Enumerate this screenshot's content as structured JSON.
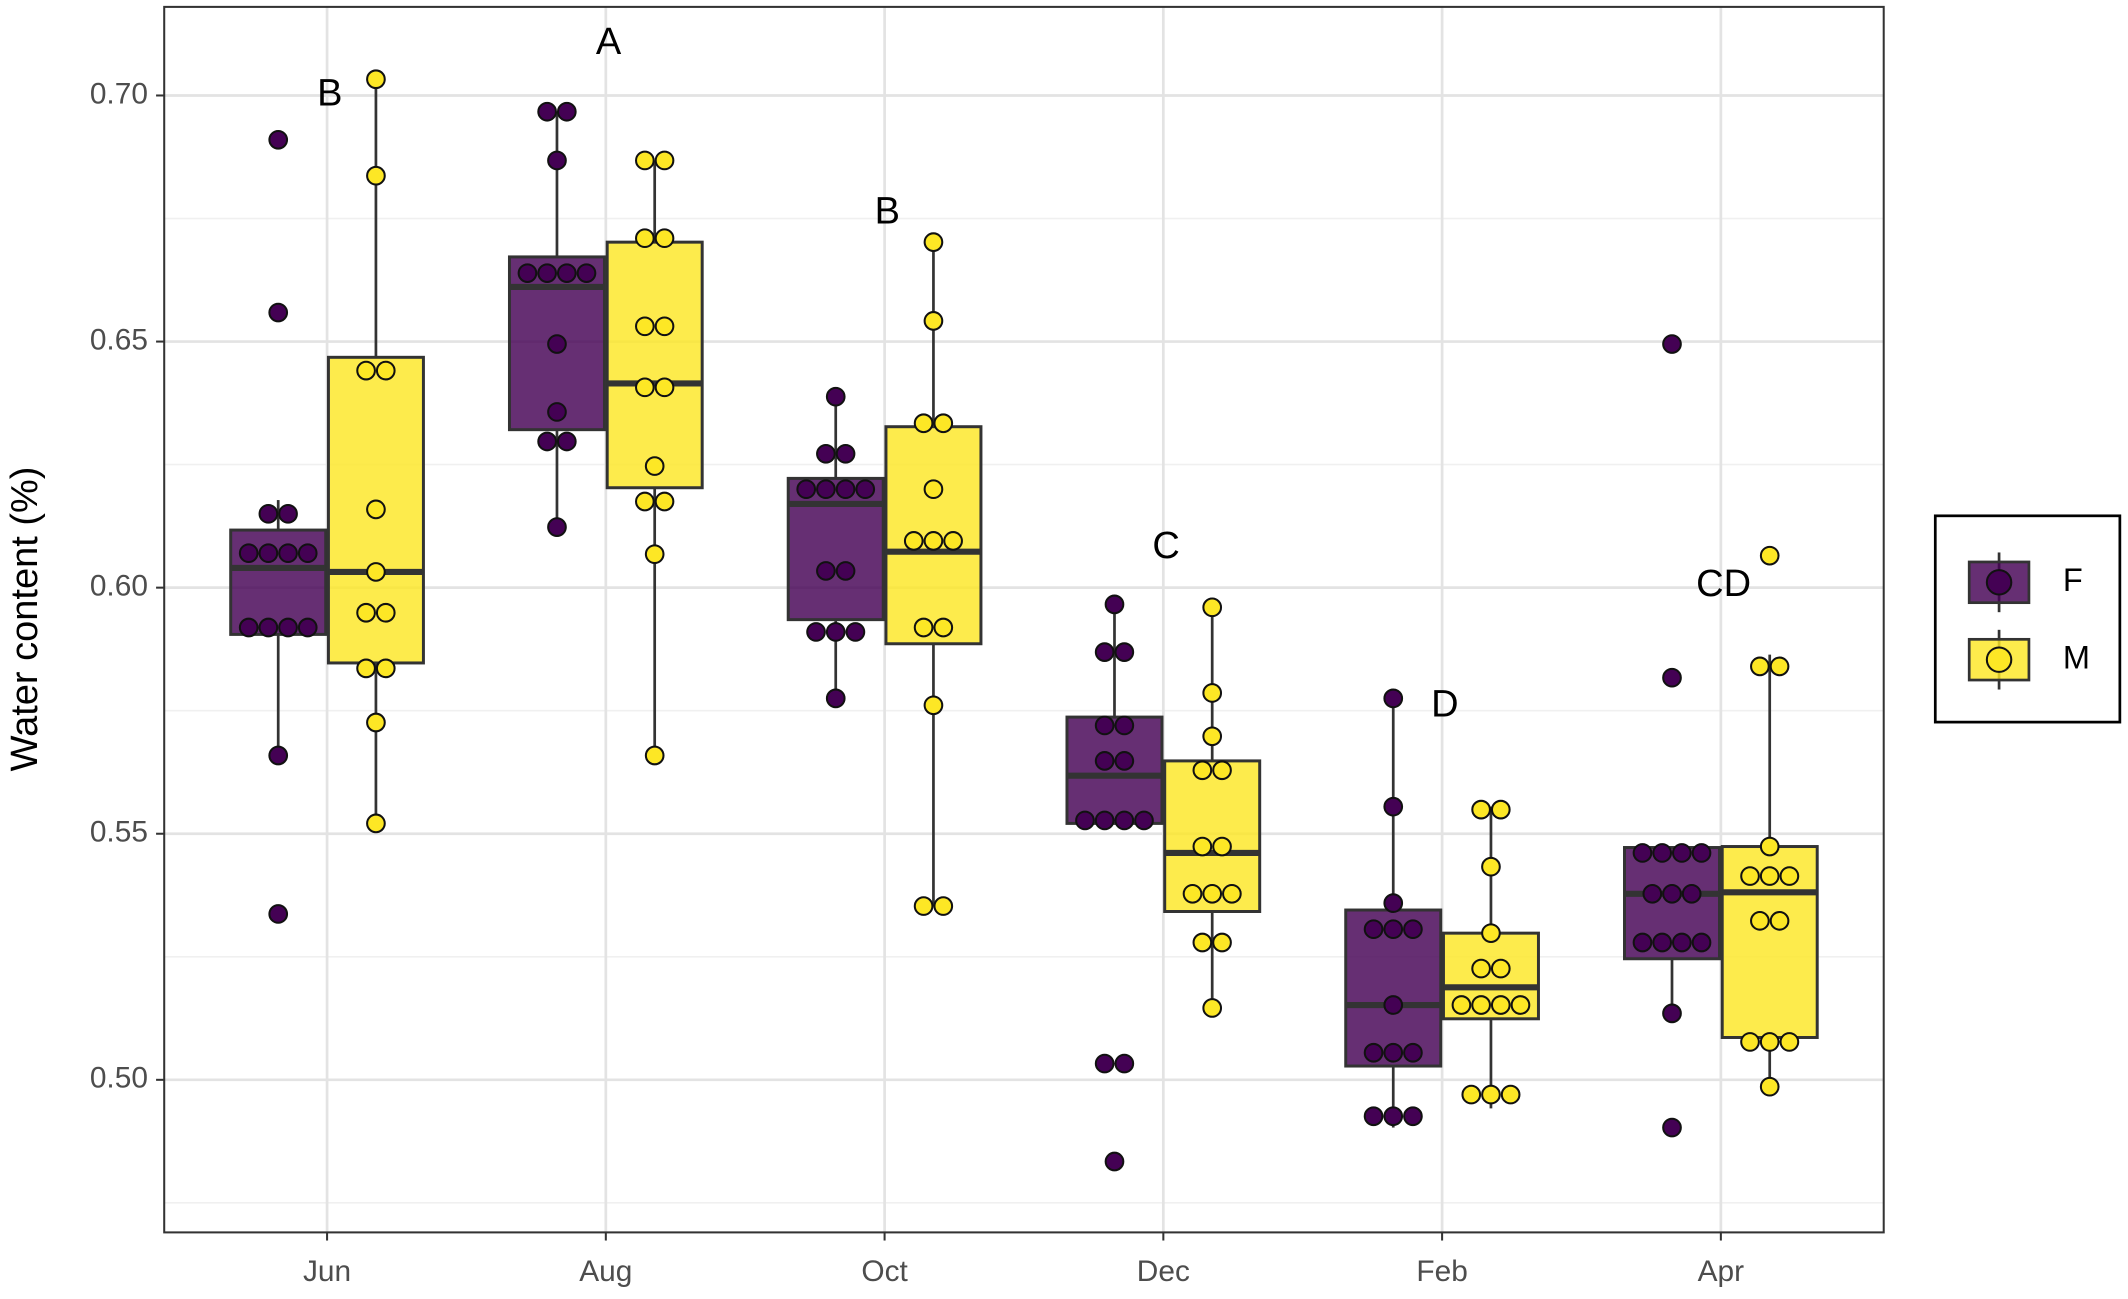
{
  "chart_data": {
    "type": "box",
    "y_label": "Water content (%)",
    "categories": [
      "Jun",
      "Aug",
      "Oct",
      "Dec",
      "Feb",
      "Apr"
    ],
    "ylim": [
      0.469,
      0.718
    ],
    "yticks": [
      {
        "value": 0.5,
        "label": "0.50"
      },
      0.55,
      {
        "value": 0.6,
        "label": "0.60"
      },
      0.65,
      {
        "value": 0.7,
        "label": "0.70"
      }
    ],
    "minor_yticks": [
      0.475,
      0.525,
      0.575,
      0.625,
      0.675
    ],
    "grid": true,
    "legend": "right",
    "series": [
      {
        "name": "F",
        "color": "#440154",
        "boxes": [
          {
            "whislo": 0.5659,
            "q1": 0.5905,
            "med": 0.604,
            "q3": 0.6117,
            "whishi": 0.6178
          },
          {
            "whislo": 0.6123,
            "q1": 0.6321,
            "med": 0.6611,
            "q3": 0.6672,
            "whishi": 0.6967
          },
          {
            "whislo": 0.5775,
            "q1": 0.5935,
            "med": 0.617,
            "q3": 0.6222,
            "whishi": 0.6388
          },
          {
            "whislo": 0.5521,
            "q1": 0.5521,
            "med": 0.5618,
            "q3": 0.5737,
            "whishi": 0.5966
          },
          {
            "whislo": 0.4903,
            "q1": 0.5028,
            "med": 0.5152,
            "q3": 0.5345,
            "whishi": 0.5775
          },
          {
            "whislo": 0.5135,
            "q1": 0.5246,
            "med": 0.5378,
            "q3": 0.5472,
            "whishi": 0.5472
          }
        ],
        "points": [
          [
            0.691,
            0.6559,
            0.615,
            0.615,
            0.607,
            0.607,
            0.607,
            0.607,
            0.5919,
            0.5919,
            0.5919,
            0.5919,
            0.5659,
            0.5337
          ],
          [
            0.6967,
            0.6967,
            0.6868,
            0.6639,
            0.6639,
            0.6639,
            0.6639,
            0.6495,
            0.6357,
            0.6297,
            0.6297,
            0.6123
          ],
          [
            0.6388,
            0.6272,
            0.6272,
            0.62,
            0.62,
            0.62,
            0.62,
            0.6034,
            0.6034,
            0.591,
            0.591,
            0.591,
            0.5775
          ],
          [
            0.5966,
            0.5869,
            0.5869,
            0.572,
            0.572,
            0.5648,
            0.5648,
            0.5527,
            0.5527,
            0.5527,
            0.5527,
            0.5033,
            0.5033,
            0.4834
          ],
          [
            0.5775,
            0.5555,
            0.5359,
            0.5306,
            0.5306,
            0.5306,
            0.5152,
            0.5055,
            0.5055,
            0.5055,
            0.4926,
            0.4926,
            0.4926
          ],
          [
            0.6495,
            0.5817,
            0.5461,
            0.5461,
            0.5461,
            0.5461,
            0.5378,
            0.5378,
            0.5378,
            0.5279,
            0.5279,
            0.5279,
            0.5279,
            0.5135,
            0.4903
          ]
        ]
      },
      {
        "name": "M",
        "color": "#fde725",
        "boxes": [
          {
            "whislo": 0.5521,
            "q1": 0.5847,
            "med": 0.6032,
            "q3": 0.6468,
            "whishi": 0.7033
          },
          {
            "whislo": 0.5659,
            "q1": 0.6203,
            "med": 0.6415,
            "q3": 0.6702,
            "whishi": 0.6868
          },
          {
            "whislo": 0.5353,
            "q1": 0.5886,
            "med": 0.6073,
            "q3": 0.6327,
            "whishi": 0.6702
          },
          {
            "whislo": 0.5146,
            "q1": 0.5342,
            "med": 0.5461,
            "q3": 0.5648,
            "whishi": 0.596
          },
          {
            "whislo": 0.4942,
            "q1": 0.5124,
            "med": 0.5188,
            "q3": 0.5298,
            "whishi": 0.5555
          },
          {
            "whislo": 0.4989,
            "q1": 0.5086,
            "med": 0.5381,
            "q3": 0.5474,
            "whishi": 0.5864
          }
        ],
        "points": [
          [
            0.7033,
            0.6837,
            0.6441,
            0.6441,
            0.6159,
            0.6032,
            0.5949,
            0.5949,
            0.5836,
            0.5836,
            0.5726,
            0.5521
          ],
          [
            0.6868,
            0.6868,
            0.671,
            0.671,
            0.6531,
            0.6531,
            0.6407,
            0.6407,
            0.6247,
            0.6175,
            0.6175,
            0.6068,
            0.5659
          ],
          [
            0.6702,
            0.6542,
            0.6334,
            0.6334,
            0.62,
            0.6095,
            0.6095,
            0.6095,
            0.5919,
            0.5919,
            0.5761,
            0.5353,
            0.5353
          ],
          [
            0.596,
            0.5786,
            0.5698,
            0.5629,
            0.5629,
            0.5474,
            0.5474,
            0.5378,
            0.5378,
            0.5378,
            0.5279,
            0.5279,
            0.5146
          ],
          [
            0.5549,
            0.5549,
            0.5433,
            0.5298,
            0.5226,
            0.5226,
            0.5152,
            0.5152,
            0.5152,
            0.5152,
            0.497,
            0.497,
            0.497
          ],
          [
            0.6065,
            0.584,
            0.584,
            0.5474,
            0.5414,
            0.5414,
            0.5414,
            0.5323,
            0.5323,
            0.5077,
            0.5077,
            0.5077,
            0.4986
          ]
        ]
      }
    ],
    "annotations": [
      {
        "text": "B",
        "x": "Jun",
        "y": 0.7
      },
      {
        "text": "A",
        "x": "Aug",
        "y": 0.7105
      },
      {
        "text": "B",
        "x": "Oct",
        "y": 0.676
      },
      {
        "text": "C",
        "x": "Dec",
        "y": 0.6081
      },
      {
        "text": "D",
        "x": "Feb",
        "y": 0.5759
      },
      {
        "text": "CD",
        "x": "Apr",
        "y": 0.6003
      }
    ]
  }
}
